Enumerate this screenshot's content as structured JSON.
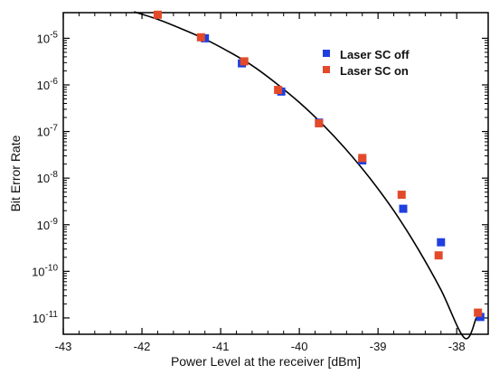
{
  "chart_data": {
    "type": "scatter",
    "title": "",
    "xlabel": "Power Level at the receiver [dBm]",
    "ylabel": "Bit Error Rate",
    "xlim": [
      -43,
      -37.6
    ],
    "ylim_log10": [
      -11.35,
      -4.45
    ],
    "yscale": "log",
    "x_ticks": [
      -43,
      -42,
      -41,
      -40,
      -39,
      -38
    ],
    "x_tick_labels": [
      "-43",
      "-42",
      "-41",
      "-40",
      "-39",
      "-38"
    ],
    "y_ticks_exp": [
      -11,
      -10,
      -9,
      -8,
      -7,
      -6,
      -5
    ],
    "y_tick_labels": [
      {
        "base": "10",
        "exp": "-11"
      },
      {
        "base": "10",
        "exp": "-10"
      },
      {
        "base": "10",
        "exp": "-9"
      },
      {
        "base": "10",
        "exp": "-8"
      },
      {
        "base": "10",
        "exp": "-7"
      },
      {
        "base": "10",
        "exp": "-6"
      },
      {
        "base": "10",
        "exp": "-5"
      }
    ],
    "grid": false,
    "legend_position": "top-right",
    "series": [
      {
        "name": "Laser SC off",
        "color": "#1f3fe0",
        "marker": "square",
        "x": [
          -41.2,
          -40.73,
          -40.23,
          -39.75,
          -39.2,
          -38.68,
          -38.2,
          -37.7
        ],
        "y": [
          1e-05,
          2.9e-06,
          7.2e-07,
          1.55e-07,
          2.4e-08,
          2.2e-09,
          4.2e-10,
          1.05e-11
        ]
      },
      {
        "name": "Laser SC on",
        "color": "#e34a2a",
        "marker": "square",
        "x": [
          -41.8,
          -41.25,
          -40.7,
          -40.27,
          -39.75,
          -39.2,
          -38.7,
          -38.23,
          -37.73
        ],
        "y": [
          3.2e-05,
          1.05e-05,
          3.2e-06,
          7.8e-07,
          1.5e-07,
          2.7e-08,
          4.4e-09,
          2.2e-10,
          1.3e-11
        ]
      }
    ],
    "fit_curve": {
      "color": "#000000",
      "x": [
        -42.1,
        -41.8,
        -41.5,
        -41.2,
        -40.9,
        -40.6,
        -40.3,
        -40.0,
        -39.7,
        -39.4,
        -39.1,
        -38.8,
        -38.5,
        -38.2,
        -37.9,
        -37.75
      ],
      "y": [
        3.7e-05,
        2.55e-05,
        1.6e-05,
        9.6e-06,
        5.2e-06,
        2.6e-06,
        1.1e-06,
        4.2e-07,
        1.4e-07,
        4e-08,
        9.8e-09,
        2e-09,
        3.2e-10,
        4e-11,
        3.7e-12,
        1.02e-11
      ]
    }
  }
}
